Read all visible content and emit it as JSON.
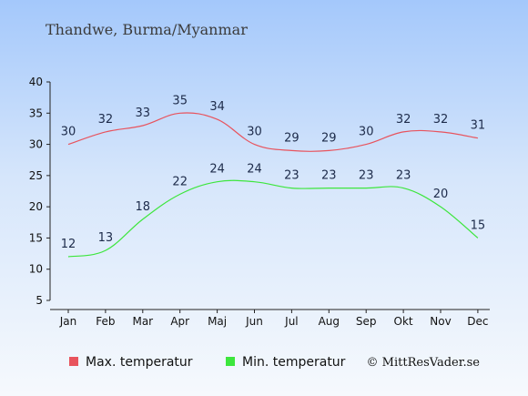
{
  "chart_data": {
    "type": "line",
    "title": "Thandwe, Burma/Myanmar",
    "xlabel": "",
    "ylabel": "",
    "ylim": [
      5,
      40
    ],
    "yticks": [
      5,
      10,
      15,
      20,
      25,
      30,
      35,
      40
    ],
    "grid": false,
    "categories": [
      "Jan",
      "Feb",
      "Mar",
      "Apr",
      "Maj",
      "Jun",
      "Jul",
      "Aug",
      "Sep",
      "Okt",
      "Nov",
      "Dec"
    ],
    "series": [
      {
        "name": "Max. temperatur",
        "color": "#e8535d",
        "values": [
          30,
          32,
          33,
          35,
          34,
          30,
          29,
          29,
          30,
          32,
          32,
          31
        ]
      },
      {
        "name": "Min. temperatur",
        "color": "#3de63d",
        "values": [
          12,
          13,
          18,
          22,
          24,
          24,
          23,
          23,
          23,
          23,
          20,
          15
        ]
      }
    ],
    "legend_position": "bottom-left",
    "credit": "© MittResVader.se"
  }
}
